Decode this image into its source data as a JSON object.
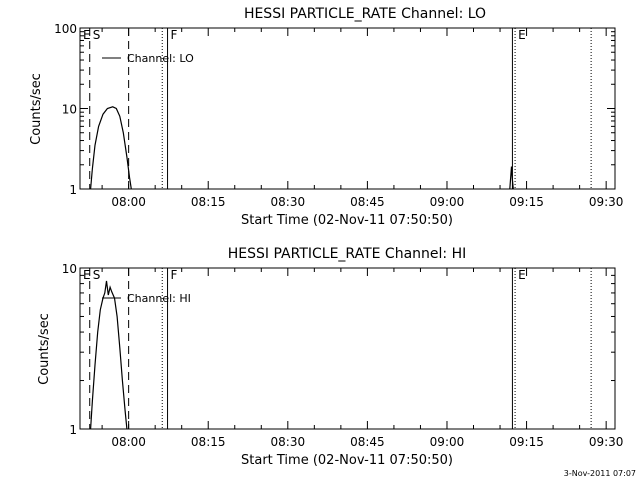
{
  "footer_timestamp": "3-Nov-2011 07:07",
  "chart_data": [
    {
      "type": "line",
      "title": "HESSI PARTICLE_RATE Channel: LO",
      "xlabel": "Start Time (02-Nov-11 07:50:50)",
      "ylabel": "Counts/sec",
      "y_scale": "log",
      "ylim": [
        1,
        100
      ],
      "y_ticks": [
        {
          "v": 1,
          "label": "1"
        },
        {
          "v": 10,
          "label": "10"
        },
        {
          "v": 100,
          "label": "100"
        }
      ],
      "xlim": [
        "07:50:50",
        "09:31:40"
      ],
      "x_ticks": [
        "08:00",
        "08:15",
        "08:30",
        "08:45",
        "09:00",
        "09:15",
        "09:30"
      ],
      "legend": {
        "label": "Channel: LO",
        "placement": "top-left"
      },
      "markers": [
        {
          "label": "E",
          "time": "07:50:50",
          "style": "none"
        },
        {
          "label": "S",
          "time": "07:52:40",
          "style": "dashed"
        },
        {
          "label": "",
          "time": "08:00:00",
          "style": "dashed"
        },
        {
          "label": "",
          "time": "08:06:20",
          "style": "dotted"
        },
        {
          "label": "F",
          "time": "08:07:20",
          "style": "solid"
        },
        {
          "label": "",
          "time": "09:12:20",
          "style": "solid"
        },
        {
          "label": "E",
          "time": "09:12:50",
          "style": "dotted"
        },
        {
          "label": "",
          "time": "09:27:10",
          "style": "dotted"
        }
      ],
      "series": [
        {
          "segments": [
            [
              [
                "07:52:50",
                1.0
              ],
              [
                "07:53:10",
                1.8
              ],
              [
                "07:53:40",
                3.5
              ],
              [
                "07:54:20",
                6.0
              ],
              [
                "07:55:10",
                8.5
              ],
              [
                "07:56:00",
                10.0
              ],
              [
                "07:57:00",
                10.5
              ],
              [
                "07:57:40",
                10.0
              ],
              [
                "07:58:20",
                8.0
              ],
              [
                "07:59:00",
                5.0
              ],
              [
                "07:59:40",
                2.5
              ],
              [
                "08:00:10",
                1.4
              ],
              [
                "08:00:30",
                1.0
              ]
            ],
            [
              [
                "09:11:50",
                1.0
              ],
              [
                "09:12:10",
                1.9
              ],
              [
                "09:12:20",
                1.3
              ],
              [
                "09:12:30",
                1.0
              ]
            ]
          ]
        }
      ]
    },
    {
      "type": "line",
      "title": "HESSI PARTICLE_RATE Channel: HI",
      "xlabel": "Start Time (02-Nov-11 07:50:50)",
      "ylabel": "Counts/sec",
      "y_scale": "log",
      "ylim": [
        1,
        10
      ],
      "y_ticks": [
        {
          "v": 1,
          "label": "1"
        },
        {
          "v": 10,
          "label": "10"
        }
      ],
      "xlim": [
        "07:50:50",
        "09:31:40"
      ],
      "x_ticks": [
        "08:00",
        "08:15",
        "08:30",
        "08:45",
        "09:00",
        "09:15",
        "09:30"
      ],
      "legend": {
        "label": "Channel: HI",
        "placement": "top-left"
      },
      "markers": [
        {
          "label": "E",
          "time": "07:50:50",
          "style": "none"
        },
        {
          "label": "S",
          "time": "07:52:40",
          "style": "dashed"
        },
        {
          "label": "",
          "time": "08:00:00",
          "style": "dashed"
        },
        {
          "label": "",
          "time": "08:06:20",
          "style": "dotted"
        },
        {
          "label": "F",
          "time": "08:07:20",
          "style": "solid"
        },
        {
          "label": "",
          "time": "09:12:20",
          "style": "solid"
        },
        {
          "label": "E",
          "time": "09:12:50",
          "style": "dotted"
        },
        {
          "label": "",
          "time": "09:27:10",
          "style": "dotted"
        }
      ],
      "series": [
        {
          "segments": [
            [
              [
                "07:52:50",
                1.0
              ],
              [
                "07:53:10",
                1.5
              ],
              [
                "07:53:40",
                2.5
              ],
              [
                "07:54:10",
                4.0
              ],
              [
                "07:54:40",
                5.5
              ],
              [
                "07:55:10",
                6.5
              ],
              [
                "07:55:30",
                7.0
              ],
              [
                "07:55:50",
                8.3
              ],
              [
                "07:56:10",
                6.8
              ],
              [
                "07:56:30",
                7.6
              ],
              [
                "07:56:50",
                7.1
              ],
              [
                "07:57:20",
                6.5
              ],
              [
                "07:57:50",
                5.0
              ],
              [
                "07:58:20",
                3.2
              ],
              [
                "07:58:50",
                2.0
              ],
              [
                "07:59:20",
                1.3
              ],
              [
                "07:59:40",
                1.0
              ]
            ]
          ]
        }
      ]
    }
  ]
}
